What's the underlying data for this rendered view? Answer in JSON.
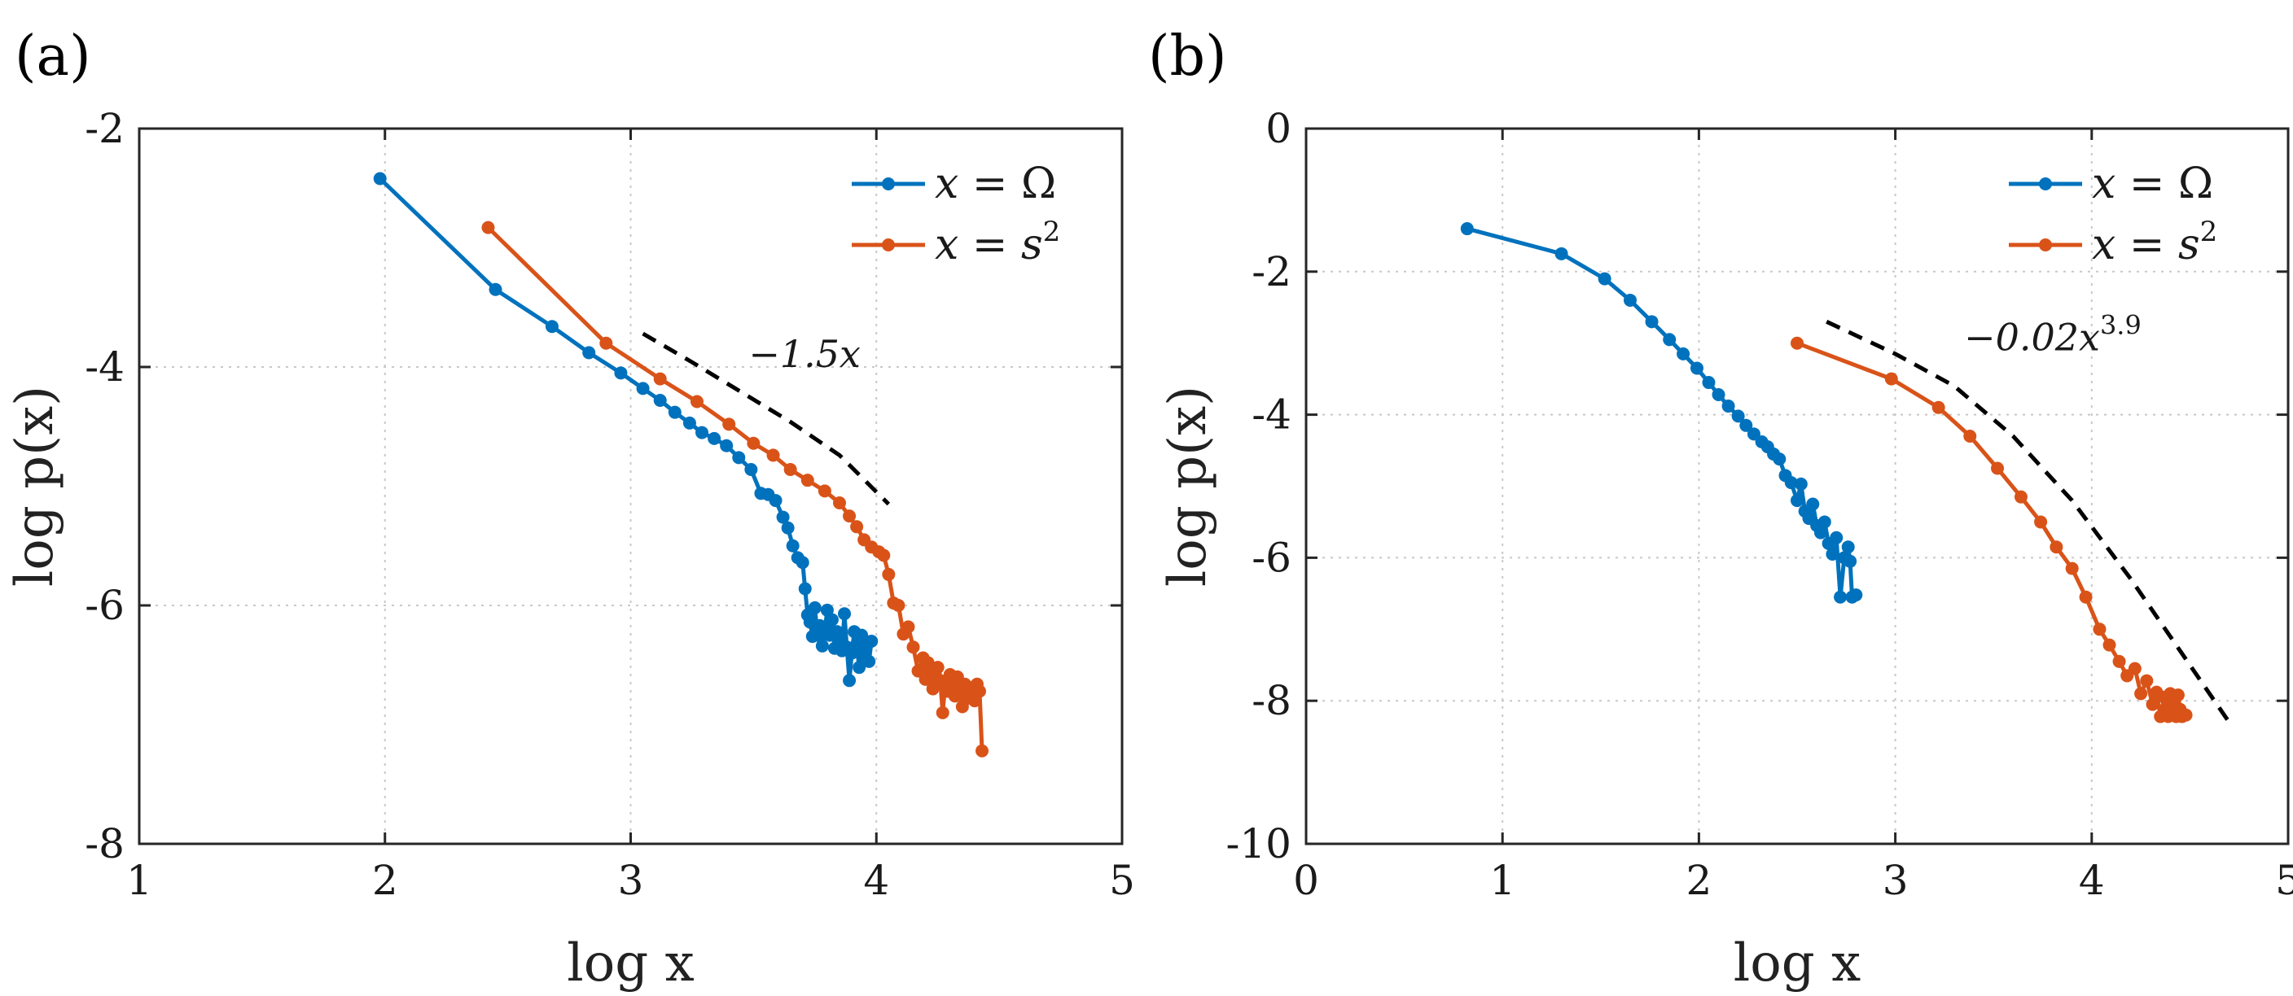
{
  "colors": {
    "blue": "#0072BD",
    "orange": "#D95319",
    "grid": "#c8c8c8",
    "axis": "#262626",
    "fit": "#000000"
  },
  "chart_data": [
    {
      "type": "line",
      "panel_label": "(a)",
      "xlabel": "log x",
      "ylabel": "log p(x)",
      "xlim": [
        1,
        5
      ],
      "ylim": [
        -8,
        -2
      ],
      "xticks": [
        1,
        2,
        3,
        4,
        5
      ],
      "yticks": [
        -8,
        -6,
        -4,
        -2
      ],
      "xtick_labels": [
        "1",
        "2",
        "3",
        "4",
        "5"
      ],
      "ytick_labels": [
        "-8",
        "-6",
        "-4",
        "-2"
      ],
      "grid": true,
      "legend": {
        "placement": "top-right",
        "entries": [
          {
            "prefix": "x = ",
            "symbol": "Ω",
            "sup": ""
          },
          {
            "prefix": "x = ",
            "symbol": "s",
            "sup": "2"
          }
        ]
      },
      "series": [
        {
          "name": "x = Ω",
          "color": "#0072BD",
          "x": [
            1.98,
            2.45,
            2.68,
            2.83,
            2.96,
            3.05,
            3.12,
            3.18,
            3.24,
            3.29,
            3.34,
            3.39,
            3.44,
            3.49,
            3.53,
            3.56,
            3.59,
            3.62,
            3.64,
            3.66,
            3.68,
            3.7,
            3.71,
            3.72,
            3.73,
            3.74,
            3.75,
            3.76,
            3.77,
            3.78,
            3.79,
            3.8,
            3.81,
            3.82,
            3.83,
            3.84,
            3.85,
            3.86,
            3.87,
            3.88,
            3.89,
            3.9,
            3.91,
            3.92,
            3.93,
            3.94,
            3.95,
            3.96,
            3.97,
            3.98
          ],
          "y": [
            -2.42,
            -3.35,
            -3.66,
            -3.88,
            -4.05,
            -4.18,
            -4.28,
            -4.38,
            -4.47,
            -4.55,
            -4.6,
            -4.66,
            -4.76,
            -4.86,
            -5.06,
            -5.07,
            -5.12,
            -5.26,
            -5.35,
            -5.5,
            -5.6,
            -5.64,
            -5.86,
            -6.08,
            -6.14,
            -6.26,
            -6.02,
            -6.25,
            -6.17,
            -6.34,
            -6.21,
            -6.04,
            -6.25,
            -6.12,
            -6.36,
            -6.22,
            -6.28,
            -6.38,
            -6.07,
            -6.35,
            -6.63,
            -6.4,
            -6.22,
            -6.33,
            -6.52,
            -6.25,
            -6.42,
            -6.33,
            -6.47,
            -6.3
          ]
        },
        {
          "name": "x = s²",
          "color": "#D95319",
          "x": [
            2.42,
            2.9,
            3.12,
            3.27,
            3.4,
            3.5,
            3.58,
            3.65,
            3.72,
            3.79,
            3.85,
            3.89,
            3.92,
            3.95,
            3.98,
            4.01,
            4.03,
            4.05,
            4.07,
            4.09,
            4.11,
            4.13,
            4.15,
            4.17,
            4.19,
            4.2,
            4.21,
            4.22,
            4.23,
            4.24,
            4.25,
            4.26,
            4.27,
            4.28,
            4.29,
            4.3,
            4.31,
            4.32,
            4.33,
            4.34,
            4.35,
            4.36,
            4.37,
            4.38,
            4.39,
            4.4,
            4.41,
            4.42,
            4.43
          ],
          "y": [
            -2.83,
            -3.8,
            -4.1,
            -4.29,
            -4.48,
            -4.64,
            -4.74,
            -4.86,
            -4.95,
            -5.04,
            -5.14,
            -5.25,
            -5.34,
            -5.45,
            -5.51,
            -5.55,
            -5.58,
            -5.74,
            -5.98,
            -6.0,
            -6.24,
            -6.18,
            -6.35,
            -6.55,
            -6.44,
            -6.62,
            -6.48,
            -6.52,
            -6.7,
            -6.58,
            -6.52,
            -6.63,
            -6.9,
            -6.67,
            -6.72,
            -6.58,
            -6.65,
            -6.76,
            -6.6,
            -6.74,
            -6.85,
            -6.66,
            -6.78,
            -6.69,
            -6.72,
            -6.8,
            -6.66,
            -6.72,
            -7.22
          ]
        },
        {
          "name": "fit",
          "color": "#000000",
          "dashed": true,
          "x": [
            3.05,
            3.25,
            3.45,
            3.65,
            3.85,
            4.05
          ],
          "y": [
            -3.72,
            -3.96,
            -4.21,
            -4.46,
            -4.74,
            -5.15
          ]
        }
      ],
      "annotations": [
        {
          "prefix": "−",
          "expr": "1.5x",
          "sup": "",
          "x": 3.48,
          "y": -4.0
        }
      ]
    },
    {
      "type": "line",
      "panel_label": "(b)",
      "xlabel": "log x",
      "ylabel": "log p(x)",
      "xlim": [
        0,
        5
      ],
      "ylim": [
        -10,
        0
      ],
      "xticks": [
        0,
        1,
        2,
        3,
        4,
        5
      ],
      "yticks": [
        -10,
        -8,
        -6,
        -4,
        -2,
        0
      ],
      "xtick_labels": [
        "0",
        "1",
        "2",
        "3",
        "4",
        "5"
      ],
      "ytick_labels": [
        "-10",
        "-8",
        "-6",
        "-4",
        "-2",
        "0"
      ],
      "grid": true,
      "legend": {
        "placement": "top-right",
        "entries": [
          {
            "prefix": "x = ",
            "symbol": "Ω",
            "sup": ""
          },
          {
            "prefix": "x = ",
            "symbol": "s",
            "sup": "2"
          }
        ]
      },
      "series": [
        {
          "name": "x = Ω",
          "color": "#0072BD",
          "x": [
            0.82,
            1.3,
            1.52,
            1.65,
            1.76,
            1.85,
            1.92,
            1.99,
            2.05,
            2.1,
            2.15,
            2.2,
            2.24,
            2.28,
            2.32,
            2.35,
            2.38,
            2.41,
            2.44,
            2.47,
            2.5,
            2.52,
            2.54,
            2.56,
            2.58,
            2.6,
            2.62,
            2.64,
            2.66,
            2.68,
            2.7,
            2.72,
            2.74,
            2.76,
            2.77,
            2.78,
            2.8
          ],
          "y": [
            -1.4,
            -1.75,
            -2.1,
            -2.4,
            -2.7,
            -2.95,
            -3.15,
            -3.35,
            -3.55,
            -3.72,
            -3.88,
            -4.02,
            -4.15,
            -4.27,
            -4.38,
            -4.45,
            -4.55,
            -4.62,
            -4.85,
            -4.95,
            -5.2,
            -4.97,
            -5.35,
            -5.45,
            -5.25,
            -5.55,
            -5.65,
            -5.5,
            -5.8,
            -5.95,
            -5.72,
            -6.55,
            -6.0,
            -5.85,
            -6.05,
            -6.55,
            -6.52
          ]
        },
        {
          "name": "x = s²",
          "color": "#D95319",
          "x": [
            2.5,
            2.98,
            3.22,
            3.38,
            3.52,
            3.64,
            3.74,
            3.82,
            3.9,
            3.97,
            4.04,
            4.09,
            4.14,
            4.18,
            4.22,
            4.25,
            4.28,
            4.31,
            4.33,
            4.35,
            4.37,
            4.38,
            4.39,
            4.4,
            4.41,
            4.42,
            4.43,
            4.44,
            4.45,
            4.46,
            4.48
          ],
          "y": [
            -3.0,
            -3.5,
            -3.9,
            -4.3,
            -4.75,
            -5.15,
            -5.5,
            -5.85,
            -6.15,
            -6.55,
            -7.0,
            -7.22,
            -7.45,
            -7.65,
            -7.55,
            -7.9,
            -7.72,
            -8.05,
            -7.88,
            -8.22,
            -7.95,
            -8.1,
            -8.22,
            -7.9,
            -8.2,
            -8.05,
            -8.22,
            -7.92,
            -8.12,
            -8.22,
            -8.2
          ]
        },
        {
          "name": "fit",
          "color": "#000000",
          "dashed": true,
          "x": [
            2.65,
            3.0,
            3.3,
            3.6,
            3.9,
            4.2,
            4.45,
            4.7
          ],
          "y": [
            -2.7,
            -3.15,
            -3.6,
            -4.3,
            -5.2,
            -6.3,
            -7.3,
            -8.3
          ]
        }
      ],
      "annotations": [
        {
          "prefix": "−",
          "expr": "0.02x",
          "sup": "3.9",
          "x": 3.35,
          "y": -3.1
        }
      ]
    }
  ]
}
